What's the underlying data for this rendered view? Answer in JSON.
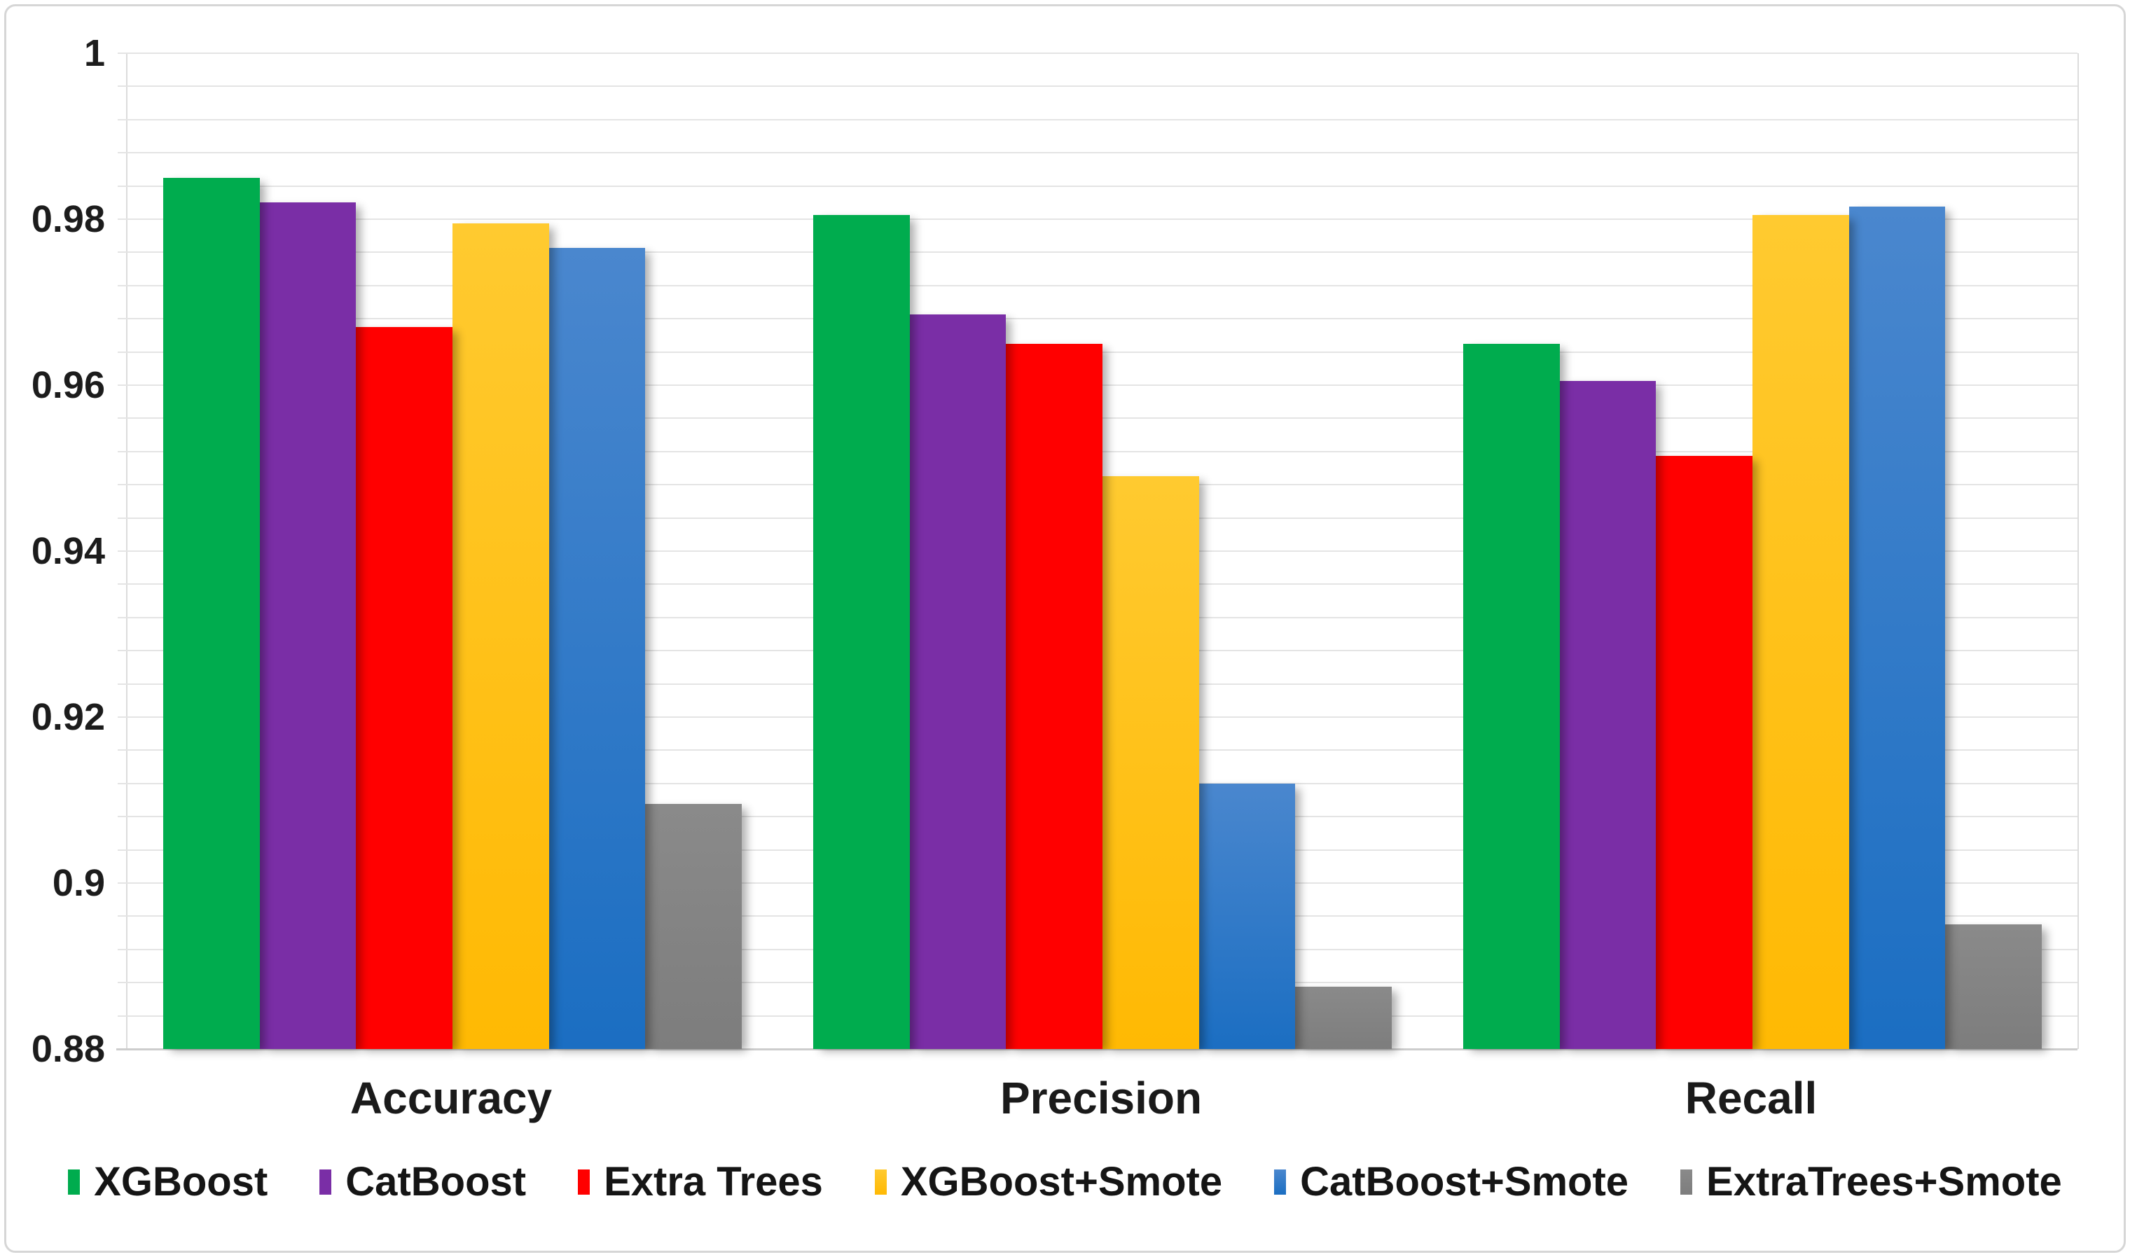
{
  "figure": {
    "kind": "grouped-column-chart",
    "background": "#ffffff",
    "border_color": "#d6d6d6"
  },
  "y_axis": {
    "min": 0.88,
    "max": 1.0,
    "minor_step": 0.004,
    "ticks": [
      {
        "label": "1",
        "value": 1.0
      },
      {
        "label": "0.98",
        "value": 0.98
      },
      {
        "label": "0.96",
        "value": 0.96
      },
      {
        "label": "0.94",
        "value": 0.94
      },
      {
        "label": "0.92",
        "value": 0.92
      },
      {
        "label": "0.9",
        "value": 0.9
      },
      {
        "label": "0.88",
        "value": 0.88
      }
    ]
  },
  "chart_data": {
    "type": "bar",
    "title": "",
    "xlabel": "",
    "ylabel": "",
    "ylim": [
      0.88,
      1.0
    ],
    "grid": true,
    "legend_position": "bottom",
    "categories": [
      "Accuracy",
      "Precision",
      "Recall"
    ],
    "series": [
      {
        "name": "XGBoost",
        "color": "#00AC4E",
        "color2": "#00AC4E",
        "values": [
          0.985,
          0.9805,
          0.965
        ]
      },
      {
        "name": "CatBoost",
        "color": "#7A2EA6",
        "color2": "#7A2EA6",
        "values": [
          0.982,
          0.9685,
          0.9605
        ]
      },
      {
        "name": "Extra Trees",
        "color": "#FF0000",
        "color2": "#FF0000",
        "values": [
          0.967,
          0.965,
          0.9515
        ]
      },
      {
        "name": "XGBoost+Smote",
        "color": "#FFCA30",
        "color2": "#FFB903",
        "values": [
          0.9795,
          0.949,
          0.9805
        ]
      },
      {
        "name": "CatBoost+Smote",
        "color": "#4A87CE",
        "color2": "#1B6EC2",
        "values": [
          0.9765,
          0.912,
          0.9815
        ]
      },
      {
        "name": "ExtraTrees+Smote",
        "color": "#8A8A8A",
        "color2": "#7d7d7d",
        "values": [
          0.9095,
          0.8875,
          0.895
        ]
      }
    ]
  }
}
